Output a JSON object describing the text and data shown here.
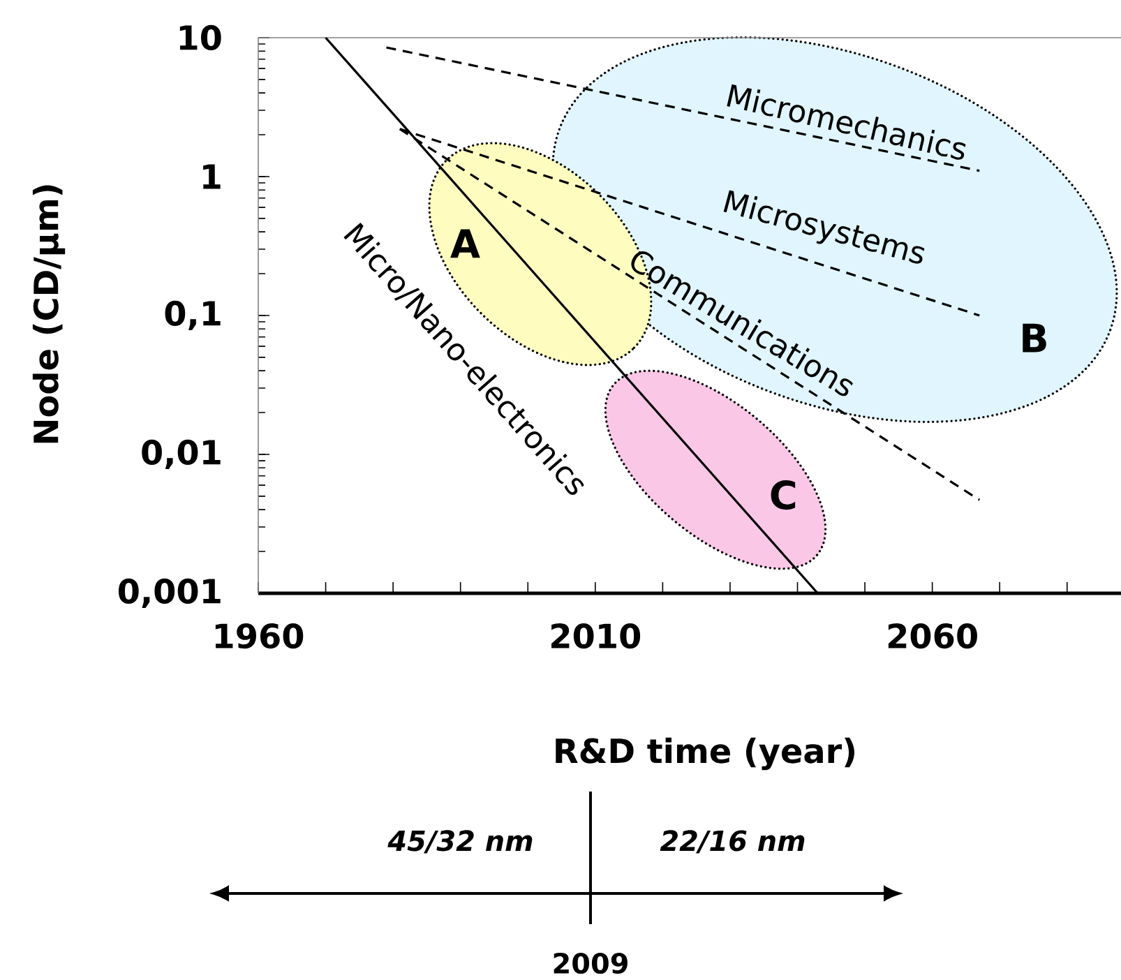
{
  "chart_data": {
    "type": "line",
    "xlabel": "R&D time (year)",
    "ylabel": "Node (CD/µm)",
    "log": "y",
    "xlim": [
      1960,
      2088
    ],
    "ylim": [
      0.001,
      10
    ],
    "xticks": [
      1960,
      {
        "value": 1970,
        "label": null
      },
      {
        "value": 1980,
        "label": null
      },
      {
        "value": 1990,
        "label": null
      },
      {
        "value": 2000,
        "label": null
      },
      2010,
      {
        "value": 2020,
        "label": null
      },
      {
        "value": 2030,
        "label": null
      },
      {
        "value": 2040,
        "label": null
      },
      {
        "value": 2050,
        "label": null
      },
      2060,
      {
        "value": 2070,
        "label": null
      },
      {
        "value": 2080,
        "label": null
      }
    ],
    "yticks": [
      {
        "value": 0.001,
        "label": "0,001"
      },
      {
        "value": 0.01,
        "label": "0,01"
      },
      {
        "value": 0.1,
        "label": "0,1"
      },
      1,
      10
    ],
    "marker": "none",
    "series": [
      {
        "x": [
          1970,
          2043
        ],
        "values": [
          10,
          0.001
        ],
        "color": "#000000",
        "line_style": "solid"
      },
      {
        "x": [
          1979,
          2067
        ],
        "values": [
          8.5,
          1.1
        ],
        "color": "#000000",
        "line_style": "dashed"
      },
      {
        "x": [
          1981,
          2067
        ],
        "values": [
          2.2,
          0.1
        ],
        "color": "#000000",
        "line_style": "dashed"
      },
      {
        "x": [
          1981,
          2067
        ],
        "values": [
          2.2,
          0.0047
        ],
        "color": "#000000",
        "line_style": "dashed"
      }
    ],
    "annotations": [
      "Micro/Nano-electronics",
      "Micromechanics",
      "Microsystems",
      "Communications",
      "A",
      "B",
      "C",
      "45/32 nm",
      "22/16 nm",
      "2009"
    ]
  }
}
